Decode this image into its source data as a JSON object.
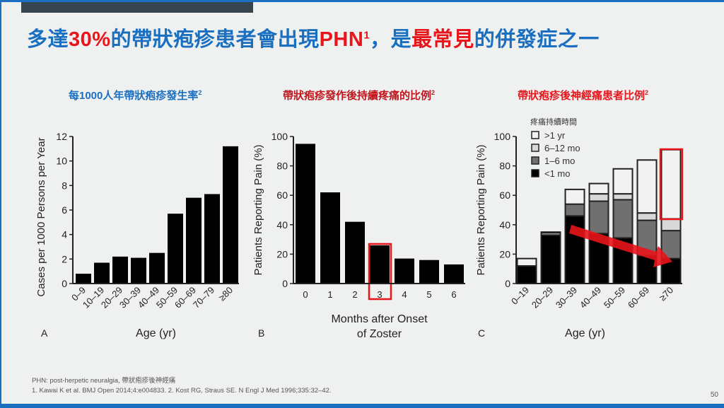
{
  "title": {
    "p1": "多達",
    "p2": "30%",
    "p3": "的帶狀疱疹患者會出現",
    "p4": "PHN",
    "p4sup": "1",
    "p5": "，是",
    "p6": "最常見",
    "p7": "的併發症之一"
  },
  "subtitles": [
    {
      "text": "每1000人年帶狀疱疹發生率",
      "sup": "2",
      "color": "#1a6fc0"
    },
    {
      "text": "帶狀疱疹發作後持續疼痛的比例",
      "sup": "2",
      "color": "#c0161c"
    },
    {
      "text": "帶狀疱疹後神經痛患者比例",
      "sup": "2",
      "color": "#e8151b"
    }
  ],
  "footnote": {
    "line1": "PHN: post-herpetic neuralgia, 帶狀疱疹後神經痛",
    "line2": "1. Kawai K et al. BMJ Open 2014;4:e004833. 2. Kost RG, Straus SE. N Engl J Med 1996;335:32–42."
  },
  "page_number": "50",
  "chart_data": [
    {
      "type": "bar",
      "panel": "A",
      "title": "每1000人年帶狀疱疹發生率",
      "xlabel": "Age (yr)",
      "ylabel": "Cases per 1000 Persons per Year",
      "categories": [
        "0–9",
        "10–19",
        "20–29",
        "30–39",
        "40–49",
        "50–59",
        "60–69",
        "70–79",
        "≥80"
      ],
      "values": [
        0.8,
        1.7,
        2.2,
        2.1,
        2.5,
        5.7,
        7.0,
        7.3,
        11.2
      ],
      "ylim": [
        0,
        12
      ],
      "yticks": [
        0,
        2,
        4,
        6,
        8,
        10,
        12
      ]
    },
    {
      "type": "bar",
      "panel": "B",
      "title": "帶狀疱疹發作後持續疼痛的比例",
      "xlabel": "Months after Onset",
      "xlabel2": "of Zoster",
      "ylabel": "Patients Reporting Pain (%)",
      "categories": [
        "0",
        "1",
        "2",
        "3",
        "4",
        "5",
        "6"
      ],
      "values": [
        95,
        62,
        42,
        26,
        17,
        16,
        13
      ],
      "ylim": [
        0,
        100
      ],
      "yticks": [
        0,
        20,
        40,
        60,
        80,
        100
      ],
      "highlight": "3"
    },
    {
      "type": "bar",
      "stacked": true,
      "panel": "C",
      "title": "帶狀疱疹後神經痛患者比例",
      "xlabel": "Age (yr)",
      "ylabel": "Patients Reporting Pain (%)",
      "legend_title": "疼痛持續時間",
      "legend_position": "top-left",
      "categories": [
        "0–19",
        "20–29",
        "30–39",
        "40–49",
        "50–59",
        "60–69",
        "≥70"
      ],
      "series": [
        {
          "name": "<1 mo",
          "color": "#000000",
          "values": [
            12,
            33,
            46,
            34,
            31,
            19,
            17
          ]
        },
        {
          "name": "1–6 mo",
          "color": "#707070",
          "values": [
            0,
            0,
            8,
            22,
            26,
            24,
            19
          ]
        },
        {
          "name": "6–12 mo",
          "color": "#d8d8d8",
          "values": [
            0,
            1.5,
            0,
            5,
            4,
            5,
            8
          ]
        },
        {
          "name": ">1 yr",
          "color": "#f2f2f2",
          "values": [
            5,
            0.5,
            10,
            7,
            17,
            36,
            47
          ]
        }
      ],
      "ylim": [
        0,
        100
      ],
      "yticks": [
        0,
        20,
        40,
        60,
        80,
        100
      ],
      "highlight": "≥70",
      "accent": "#e8151b"
    }
  ]
}
